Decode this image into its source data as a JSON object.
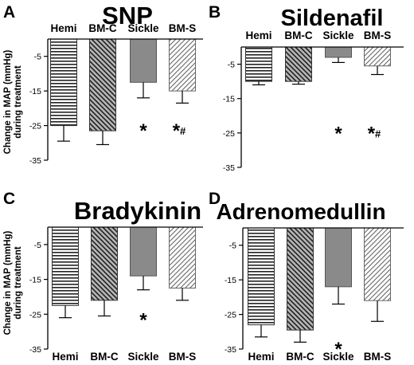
{
  "figure": {
    "ylabel_line1": "Change in MAP  (mmHg)",
    "ylabel_line2": "during treatment"
  },
  "chart_data": [
    {
      "type": "bar",
      "panel_letter": "A",
      "title": "SNP",
      "categories": [
        "Hemi",
        "BM-C",
        "Sickle",
        "BM-S"
      ],
      "values": [
        -25,
        -26.5,
        -12.5,
        -15
      ],
      "errors": [
        4.5,
        4,
        4.5,
        3.5
      ],
      "ylim": [
        -35,
        0
      ],
      "yticks": [
        "-5",
        "-15",
        "-25",
        "-35"
      ],
      "ytick_values": [
        -5,
        -15,
        -25,
        -35
      ],
      "annotations": [
        {
          "category_index": 2,
          "text": "*"
        },
        {
          "category_index": 3,
          "text": "*#"
        }
      ]
    },
    {
      "type": "bar",
      "panel_letter": "B",
      "title": "Sildenafil",
      "categories": [
        "Hemi",
        "BM-C",
        "Sickle",
        "BM-S"
      ],
      "values": [
        -10,
        -10,
        -3,
        -5.5
      ],
      "errors": [
        1,
        0.8,
        1.5,
        2.5
      ],
      "ylim": [
        -35,
        0
      ],
      "yticks": [
        "-5",
        "-15",
        "-25",
        "-35"
      ],
      "ytick_values": [
        -5,
        -15,
        -25,
        -35
      ],
      "annotations": [
        {
          "category_index": 2,
          "text": "*"
        },
        {
          "category_index": 3,
          "text": "*#"
        }
      ]
    },
    {
      "type": "bar",
      "panel_letter": "C",
      "title": "Bradykinin",
      "categories": [
        "Hemi",
        "BM-C",
        "Sickle",
        "BM-S"
      ],
      "values": [
        -22.5,
        -21,
        -14,
        -17.5
      ],
      "errors": [
        3.5,
        4.5,
        4,
        3.5
      ],
      "ylim": [
        -35,
        0
      ],
      "yticks": [
        "-5",
        "-15",
        "-25",
        "-35"
      ],
      "ytick_values": [
        -5,
        -15,
        -25,
        -35
      ],
      "annotations": [
        {
          "category_index": 2,
          "text": "*"
        }
      ]
    },
    {
      "type": "bar",
      "panel_letter": "D",
      "title": "Adrenomedullin",
      "categories": [
        "Hemi",
        "BM-C",
        "Sickle",
        "BM-S"
      ],
      "values": [
        -28,
        -29.5,
        -17,
        -21
      ],
      "errors": [
        3.5,
        3.5,
        5,
        6
      ],
      "ylim": [
        -35,
        0
      ],
      "yticks": [
        "-5",
        "-15",
        "-25",
        "-35"
      ],
      "ytick_values": [
        -5,
        -15,
        -25,
        -35
      ],
      "annotations": [
        {
          "category_index": 2,
          "text": "*"
        }
      ]
    }
  ],
  "colors": {
    "hemi_lines": "#222222",
    "bmc_lines": "#222222",
    "bmc_fill": "#9a9a9a",
    "sickle_fill": "#808080",
    "bms_lines": "#555555",
    "axis": "#000000"
  }
}
